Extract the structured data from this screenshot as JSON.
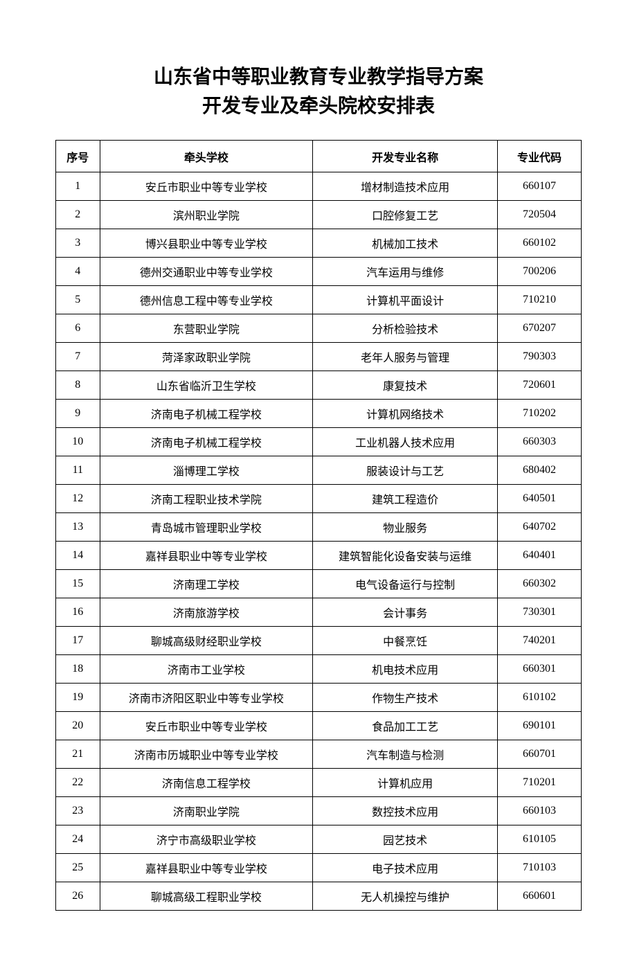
{
  "title_line1": "山东省中等职业教育专业教学指导方案",
  "title_line2": "开发专业及牵头院校安排表",
  "table": {
    "columns": [
      "序号",
      "牵头学校",
      "开发专业名称",
      "专业代码"
    ],
    "rows": [
      [
        "1",
        "安丘市职业中等专业学校",
        "增材制造技术应用",
        "660107"
      ],
      [
        "2",
        "滨州职业学院",
        "口腔修复工艺",
        "720504"
      ],
      [
        "3",
        "博兴县职业中等专业学校",
        "机械加工技术",
        "660102"
      ],
      [
        "4",
        "德州交通职业中等专业学校",
        "汽车运用与维修",
        "700206"
      ],
      [
        "5",
        "德州信息工程中等专业学校",
        "计算机平面设计",
        "710210"
      ],
      [
        "6",
        "东营职业学院",
        "分析检验技术",
        "670207"
      ],
      [
        "7",
        "菏泽家政职业学院",
        "老年人服务与管理",
        "790303"
      ],
      [
        "8",
        "山东省临沂卫生学校",
        "康复技术",
        "720601"
      ],
      [
        "9",
        "济南电子机械工程学校",
        "计算机网络技术",
        "710202"
      ],
      [
        "10",
        "济南电子机械工程学校",
        "工业机器人技术应用",
        "660303"
      ],
      [
        "11",
        "淄博理工学校",
        "服装设计与工艺",
        "680402"
      ],
      [
        "12",
        "济南工程职业技术学院",
        "建筑工程造价",
        "640501"
      ],
      [
        "13",
        "青岛城市管理职业学校",
        "物业服务",
        "640702"
      ],
      [
        "14",
        "嘉祥县职业中等专业学校",
        "建筑智能化设备安装与运维",
        "640401"
      ],
      [
        "15",
        "济南理工学校",
        "电气设备运行与控制",
        "660302"
      ],
      [
        "16",
        "济南旅游学校",
        "会计事务",
        "730301"
      ],
      [
        "17",
        "聊城高级财经职业学校",
        "中餐烹饪",
        "740201"
      ],
      [
        "18",
        "济南市工业学校",
        "机电技术应用",
        "660301"
      ],
      [
        "19",
        "济南市济阳区职业中等专业学校",
        "作物生产技术",
        "610102"
      ],
      [
        "20",
        "安丘市职业中等专业学校",
        "食品加工工艺",
        "690101"
      ],
      [
        "21",
        "济南市历城职业中等专业学校",
        "汽车制造与检测",
        "660701"
      ],
      [
        "22",
        "济南信息工程学校",
        "计算机应用",
        "710201"
      ],
      [
        "23",
        "济南职业学院",
        "数控技术应用",
        "660103"
      ],
      [
        "24",
        "济宁市高级职业学校",
        "园艺技术",
        "610105"
      ],
      [
        "25",
        "嘉祥县职业中等专业学校",
        "电子技术应用",
        "710103"
      ],
      [
        "26",
        "聊城高级工程职业学校",
        "无人机操控与维护",
        "660601"
      ]
    ]
  }
}
